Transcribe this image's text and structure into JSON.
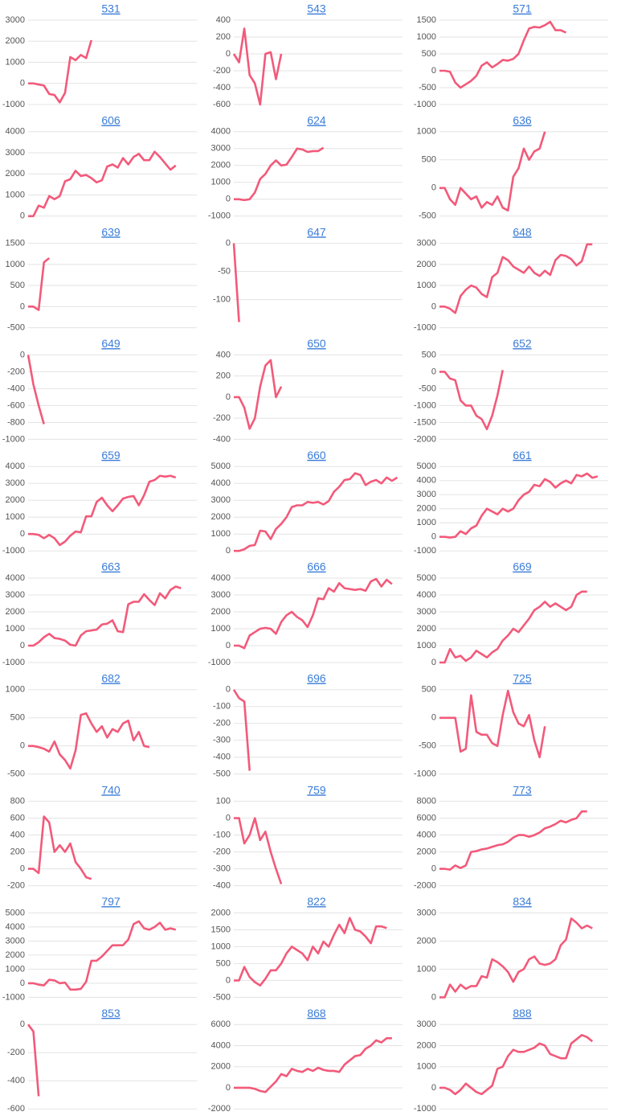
{
  "chart_data": [
    {
      "type": "line",
      "title": "531",
      "color": "#f25a7a",
      "grid": true,
      "ylim": [
        -1000,
        3000
      ],
      "yticks": [
        -1000,
        0,
        1000,
        2000,
        3000
      ],
      "values": [
        0,
        0,
        -50,
        -100,
        -500,
        -550,
        -900,
        -450,
        1250,
        1100,
        1350,
        1200,
        2050
      ]
    },
    {
      "type": "line",
      "title": "543",
      "color": "#f25a7a",
      "grid": true,
      "ylim": [
        -600,
        400
      ],
      "yticks": [
        -600,
        -400,
        -200,
        0,
        200,
        400
      ],
      "values": [
        0,
        -100,
        300,
        -250,
        -350,
        -600,
        0,
        20,
        -300,
        0
      ]
    },
    {
      "type": "line",
      "title": "571",
      "color": "#f25a7a",
      "grid": true,
      "ylim": [
        -1000,
        1500
      ],
      "yticks": [
        -1000,
        -500,
        0,
        500,
        1000,
        1500
      ],
      "values": [
        0,
        0,
        -30,
        -350,
        -500,
        -400,
        -300,
        -150,
        150,
        250,
        100,
        200,
        320,
        300,
        350,
        500,
        900,
        1250,
        1300,
        1280,
        1350,
        1450,
        1200,
        1200,
        1130
      ]
    },
    {
      "type": "line",
      "title": "606",
      "color": "#f25a7a",
      "grid": true,
      "ylim": [
        0,
        4000
      ],
      "yticks": [
        0,
        1000,
        2000,
        3000,
        4000
      ],
      "values": [
        0,
        0,
        500,
        400,
        950,
        800,
        950,
        1650,
        1750,
        2150,
        1900,
        1950,
        1800,
        1600,
        1700,
        2350,
        2450,
        2300,
        2750,
        2450,
        2800,
        2950,
        2650,
        2650,
        3050,
        2800,
        2500,
        2200,
        2400
      ]
    },
    {
      "type": "line",
      "title": "624",
      "color": "#f25a7a",
      "grid": true,
      "ylim": [
        -1000,
        4000
      ],
      "yticks": [
        -1000,
        0,
        1000,
        2000,
        3000,
        4000
      ],
      "values": [
        0,
        0,
        -50,
        0,
        400,
        1200,
        1500,
        2000,
        2300,
        2000,
        2050,
        2500,
        3000,
        2950,
        2800,
        2850,
        2850,
        3050
      ]
    },
    {
      "type": "line",
      "title": "636",
      "color": "#f25a7a",
      "grid": true,
      "ylim": [
        -500,
        1000
      ],
      "yticks": [
        -500,
        0,
        500,
        1000
      ],
      "values": [
        0,
        0,
        -200,
        -300,
        0,
        -100,
        -200,
        -150,
        -350,
        -250,
        -300,
        -150,
        -350,
        -400,
        200,
        350,
        700,
        500,
        650,
        700,
        1000
      ]
    },
    {
      "type": "line",
      "title": "639",
      "color": "#f25a7a",
      "grid": true,
      "ylim": [
        -500,
        1500
      ],
      "yticks": [
        -500,
        0,
        500,
        1000,
        1500
      ],
      "values": [
        0,
        0,
        -80,
        1050,
        1150
      ]
    },
    {
      "type": "line",
      "title": "647",
      "color": "#f25a7a",
      "grid": true,
      "ylim": [
        -150,
        0
      ],
      "yticks": [
        -100,
        -50,
        0
      ],
      "values": [
        0,
        -140
      ]
    },
    {
      "type": "line",
      "title": "648",
      "color": "#f25a7a",
      "grid": true,
      "ylim": [
        -1000,
        3000
      ],
      "yticks": [
        -1000,
        0,
        1000,
        2000,
        3000
      ],
      "values": [
        0,
        0,
        -100,
        -300,
        500,
        800,
        1000,
        900,
        600,
        450,
        1400,
        1600,
        2350,
        2200,
        1900,
        1750,
        1600,
        1900,
        1600,
        1450,
        1700,
        1500,
        2200,
        2450,
        2400,
        2250,
        1950,
        2150,
        2950,
        2950
      ]
    },
    {
      "type": "line",
      "title": "649",
      "color": "#f25a7a",
      "grid": true,
      "ylim": [
        -1000,
        0
      ],
      "yticks": [
        -1000,
        -800,
        -600,
        -400,
        -200,
        0
      ],
      "values": [
        0,
        -350,
        -600,
        -820
      ]
    },
    {
      "type": "line",
      "title": "650",
      "color": "#f25a7a",
      "grid": true,
      "ylim": [
        -400,
        400
      ],
      "yticks": [
        -400,
        -200,
        0,
        200,
        400
      ],
      "values": [
        0,
        0,
        -100,
        -300,
        -200,
        100,
        300,
        350,
        0,
        100
      ]
    },
    {
      "type": "line",
      "title": "652",
      "color": "#f25a7a",
      "grid": true,
      "ylim": [
        -2000,
        500
      ],
      "yticks": [
        -2000,
        -1500,
        -1000,
        -500,
        0,
        500
      ],
      "values": [
        0,
        0,
        -200,
        -250,
        -850,
        -1000,
        -1000,
        -1300,
        -1400,
        -1700,
        -1300,
        -700,
        50
      ]
    },
    {
      "type": "line",
      "title": "659",
      "color": "#f25a7a",
      "grid": true,
      "ylim": [
        -1000,
        4000
      ],
      "yticks": [
        -1000,
        0,
        1000,
        2000,
        3000,
        4000
      ],
      "values": [
        0,
        0,
        -50,
        -250,
        -50,
        -250,
        -650,
        -450,
        -100,
        150,
        100,
        1050,
        1050,
        1900,
        2150,
        1700,
        1350,
        1700,
        2100,
        2200,
        2250,
        1700,
        2300,
        3100,
        3200,
        3450,
        3400,
        3450,
        3350
      ]
    },
    {
      "type": "line",
      "title": "660",
      "color": "#f25a7a",
      "grid": true,
      "ylim": [
        0,
        5000
      ],
      "yticks": [
        0,
        1000,
        2000,
        3000,
        4000,
        5000
      ],
      "values": [
        0,
        0,
        100,
        300,
        350,
        1200,
        1150,
        700,
        1300,
        1600,
        2000,
        2600,
        2700,
        2700,
        2900,
        2850,
        2900,
        2750,
        2950,
        3500,
        3800,
        4200,
        4250,
        4600,
        4500,
        3900,
        4100,
        4200,
        4000,
        4350,
        4150,
        4350
      ]
    },
    {
      "type": "line",
      "title": "661",
      "color": "#f25a7a",
      "grid": true,
      "ylim": [
        -1000,
        5000
      ],
      "yticks": [
        -1000,
        0,
        1000,
        2000,
        3000,
        4000,
        5000
      ],
      "values": [
        0,
        0,
        -50,
        0,
        400,
        200,
        600,
        800,
        1500,
        2000,
        1800,
        1600,
        2000,
        1800,
        2000,
        2600,
        3000,
        3200,
        3700,
        3600,
        4100,
        3900,
        3500,
        3800,
        4000,
        3800,
        4400,
        4300,
        4500,
        4200,
        4300
      ]
    },
    {
      "type": "line",
      "title": "663",
      "color": "#f25a7a",
      "grid": true,
      "ylim": [
        -1000,
        4000
      ],
      "yticks": [
        -1000,
        0,
        1000,
        2000,
        3000,
        4000
      ],
      "values": [
        0,
        0,
        200,
        500,
        700,
        450,
        400,
        300,
        50,
        0,
        600,
        850,
        900,
        950,
        1250,
        1300,
        1500,
        850,
        800,
        2450,
        2600,
        2600,
        3050,
        2700,
        2400,
        3100,
        2800,
        3300,
        3500,
        3400
      ]
    },
    {
      "type": "line",
      "title": "666",
      "color": "#f25a7a",
      "grid": true,
      "ylim": [
        -1000,
        4000
      ],
      "yticks": [
        -1000,
        0,
        1000,
        2000,
        3000,
        4000
      ],
      "values": [
        0,
        0,
        -150,
        600,
        800,
        1000,
        1050,
        1000,
        700,
        1400,
        1800,
        2000,
        1700,
        1500,
        1100,
        1800,
        2800,
        2750,
        3400,
        3200,
        3700,
        3400,
        3350,
        3300,
        3350,
        3250,
        3800,
        3950,
        3500,
        3900,
        3650
      ]
    },
    {
      "type": "line",
      "title": "669",
      "color": "#f25a7a",
      "grid": true,
      "ylim": [
        0,
        5000
      ],
      "yticks": [
        0,
        1000,
        2000,
        3000,
        4000,
        5000
      ],
      "values": [
        0,
        0,
        800,
        300,
        400,
        100,
        300,
        700,
        500,
        300,
        600,
        800,
        1300,
        1600,
        2000,
        1800,
        2200,
        2600,
        3100,
        3300,
        3600,
        3300,
        3500,
        3300,
        3100,
        3300,
        4000,
        4200,
        4200
      ]
    },
    {
      "type": "line",
      "title": "682",
      "color": "#f25a7a",
      "grid": true,
      "ylim": [
        -500,
        1000
      ],
      "yticks": [
        -500,
        0,
        500,
        1000
      ],
      "values": [
        0,
        0,
        -20,
        -50,
        -100,
        80,
        -150,
        -250,
        -400,
        -80,
        550,
        580,
        400,
        250,
        350,
        150,
        300,
        250,
        400,
        450,
        100,
        250,
        0,
        -20
      ]
    },
    {
      "type": "line",
      "title": "696",
      "color": "#f25a7a",
      "grid": true,
      "ylim": [
        -500,
        0
      ],
      "yticks": [
        -500,
        -400,
        -300,
        -200,
        -100,
        0
      ],
      "values": [
        0,
        -50,
        -70,
        -480
      ]
    },
    {
      "type": "line",
      "title": "725",
      "color": "#f25a7a",
      "grid": true,
      "ylim": [
        -1000,
        500
      ],
      "yticks": [
        -1000,
        -500,
        0,
        500
      ],
      "values": [
        0,
        0,
        0,
        0,
        -600,
        -550,
        400,
        -250,
        -300,
        -300,
        -450,
        -500,
        50,
        480,
        100,
        -100,
        -150,
        50,
        -400,
        -700,
        -150
      ]
    },
    {
      "type": "line",
      "title": "740",
      "color": "#f25a7a",
      "grid": true,
      "ylim": [
        -200,
        800
      ],
      "yticks": [
        -200,
        0,
        200,
        400,
        600,
        800
      ],
      "values": [
        0,
        0,
        -50,
        620,
        550,
        200,
        280,
        200,
        300,
        80,
        0,
        -100,
        -120
      ]
    },
    {
      "type": "line",
      "title": "759",
      "color": "#f25a7a",
      "grid": true,
      "ylim": [
        -400,
        100
      ],
      "yticks": [
        -400,
        -300,
        -200,
        -100,
        0,
        100
      ],
      "values": [
        0,
        0,
        -150,
        -100,
        0,
        -130,
        -80,
        -200,
        -300,
        -390
      ]
    },
    {
      "type": "line",
      "title": "773",
      "color": "#f25a7a",
      "grid": true,
      "ylim": [
        -2000,
        8000
      ],
      "yticks": [
        -2000,
        0,
        2000,
        4000,
        6000,
        8000
      ],
      "values": [
        0,
        0,
        -100,
        400,
        100,
        400,
        2000,
        2100,
        2300,
        2400,
        2600,
        2800,
        2900,
        3200,
        3700,
        4000,
        4000,
        3800,
        4000,
        4300,
        4800,
        5000,
        5300,
        5700,
        5500,
        5800,
        6000,
        6800,
        6800
      ]
    },
    {
      "type": "line",
      "title": "797",
      "color": "#f25a7a",
      "grid": true,
      "ylim": [
        -1000,
        5000
      ],
      "yticks": [
        -1000,
        0,
        1000,
        2000,
        3000,
        4000,
        5000
      ],
      "values": [
        0,
        0,
        -100,
        -150,
        250,
        200,
        0,
        50,
        -450,
        -450,
        -400,
        100,
        1600,
        1600,
        1900,
        2300,
        2700,
        2700,
        2700,
        3100,
        4200,
        4400,
        3900,
        3800,
        4000,
        4300,
        3800,
        3900,
        3800
      ]
    },
    {
      "type": "line",
      "title": "822",
      "color": "#f25a7a",
      "grid": true,
      "ylim": [
        -500,
        2000
      ],
      "yticks": [
        -500,
        0,
        500,
        1000,
        1500,
        2000
      ],
      "values": [
        0,
        0,
        400,
        100,
        -50,
        -150,
        50,
        300,
        300,
        500,
        800,
        1000,
        900,
        800,
        600,
        1000,
        800,
        1150,
        1000,
        1350,
        1650,
        1400,
        1850,
        1500,
        1450,
        1300,
        1100,
        1600,
        1600,
        1550
      ]
    },
    {
      "type": "line",
      "title": "834",
      "color": "#f25a7a",
      "grid": true,
      "ylim": [
        0,
        3000
      ],
      "yticks": [
        0,
        1000,
        2000,
        3000
      ],
      "values": [
        0,
        0,
        450,
        200,
        450,
        300,
        400,
        400,
        750,
        700,
        1350,
        1250,
        1100,
        900,
        550,
        900,
        1000,
        1350,
        1450,
        1200,
        1150,
        1200,
        1350,
        1850,
        2050,
        2800,
        2650,
        2450,
        2550,
        2450
      ]
    },
    {
      "type": "line",
      "title": "853",
      "color": "#f25a7a",
      "grid": true,
      "ylim": [
        -600,
        0
      ],
      "yticks": [
        -600,
        -400,
        -200,
        0
      ],
      "values": [
        0,
        -50,
        -510
      ]
    },
    {
      "type": "line",
      "title": "868",
      "color": "#f25a7a",
      "grid": true,
      "ylim": [
        -2000,
        6000
      ],
      "yticks": [
        -2000,
        0,
        2000,
        4000,
        6000
      ],
      "values": [
        0,
        0,
        0,
        0,
        -100,
        -300,
        -400,
        100,
        600,
        1300,
        1100,
        1800,
        1600,
        1500,
        1800,
        1600,
        1900,
        1700,
        1600,
        1600,
        1500,
        2200,
        2600,
        3000,
        3100,
        3700,
        4000,
        4500,
        4300,
        4700,
        4700
      ]
    },
    {
      "type": "line",
      "title": "888",
      "color": "#f25a7a",
      "grid": true,
      "ylim": [
        -1000,
        3000
      ],
      "yticks": [
        -1000,
        0,
        1000,
        2000,
        3000
      ],
      "values": [
        0,
        0,
        -100,
        -300,
        -100,
        200,
        0,
        -200,
        -300,
        -100,
        100,
        900,
        1000,
        1500,
        1800,
        1700,
        1700,
        1800,
        1900,
        2100,
        2000,
        1600,
        1500,
        1400,
        1400,
        2100,
        2300,
        2500,
        2400,
        2200
      ]
    }
  ]
}
